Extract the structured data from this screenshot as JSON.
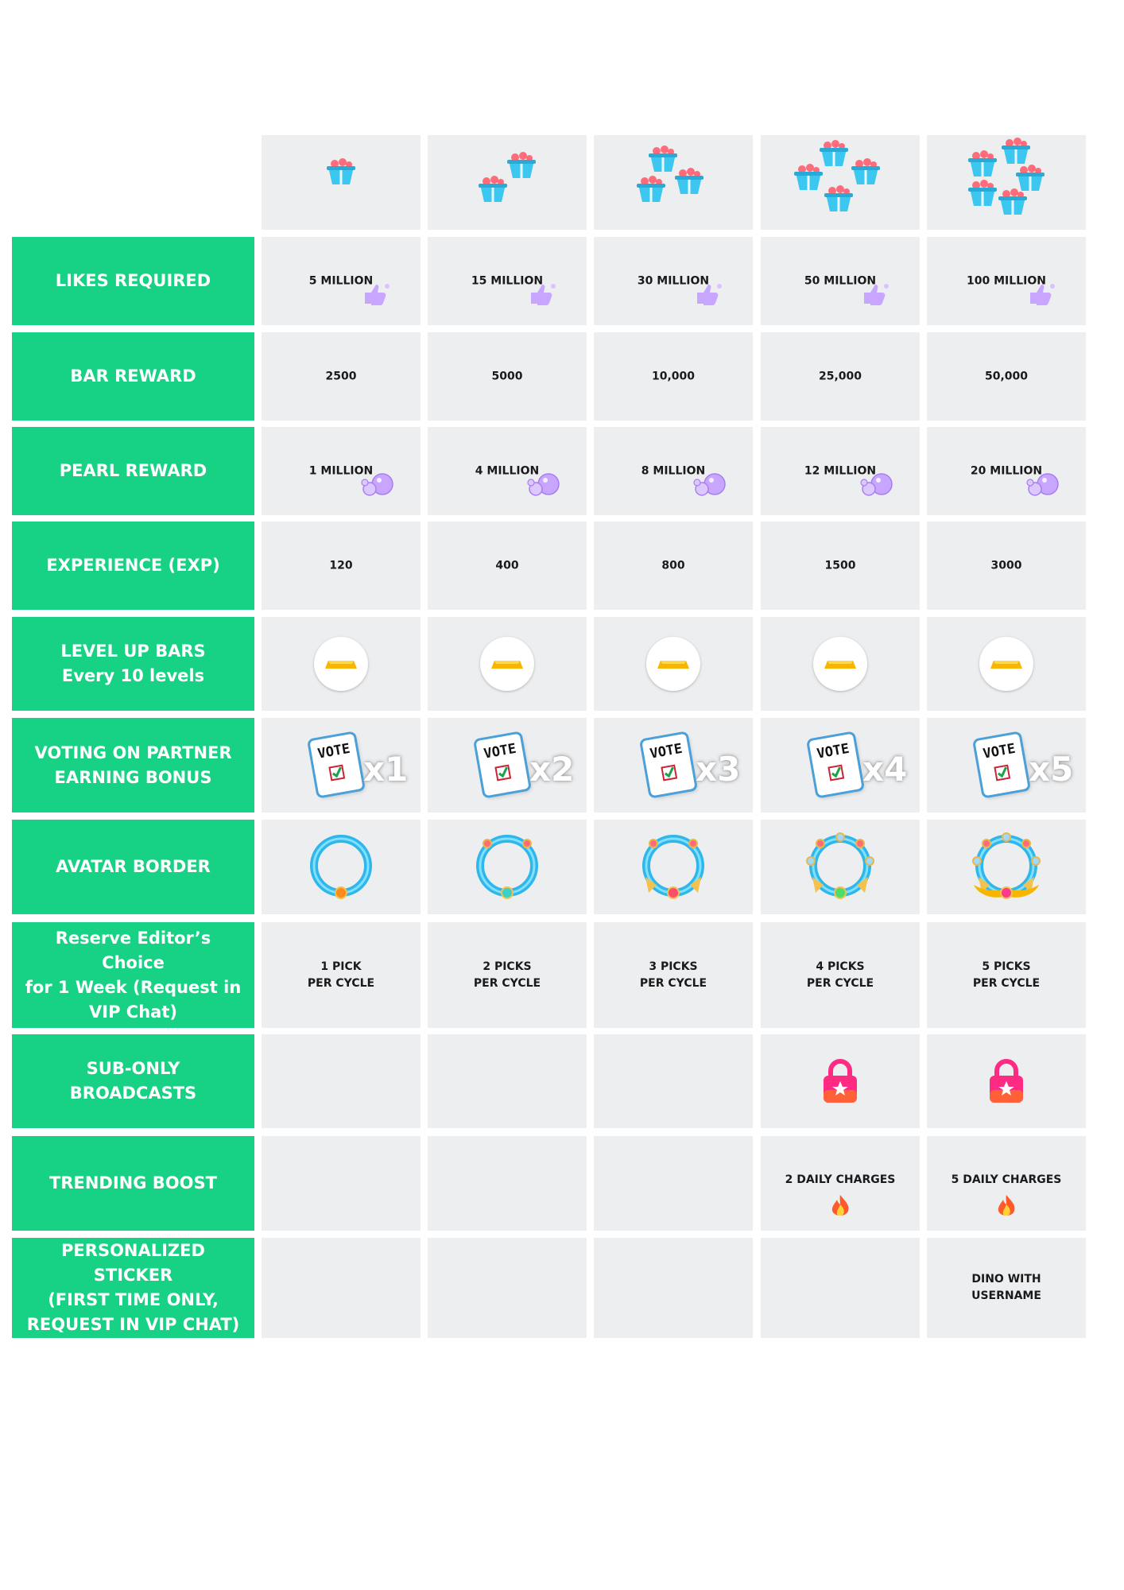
{
  "rows": [
    {
      "header": "LIKES REQUIRED",
      "cells": [
        "5 MILLION",
        "15 MILLION",
        "30 MILLION",
        "50 MILLION",
        "100 MILLION"
      ]
    },
    {
      "header": "BAR REWARD",
      "cells": [
        "2500",
        "5000",
        "10,000",
        "25,000",
        "50,000"
      ]
    },
    {
      "header": "PEARL REWARD",
      "cells": [
        "1 MILLION",
        "4 MILLION",
        "8 MILLION",
        "12 MILLION",
        "20 MILLION"
      ]
    },
    {
      "header": "EXPERIENCE (EXP)",
      "cells": [
        "120",
        "400",
        "800",
        "1500",
        "3000"
      ]
    },
    {
      "header": "LEVEL UP BARS\nEvery 10 levels",
      "cells": []
    },
    {
      "header": "VOTING ON PARTNER\nEARNING BONUS",
      "cells": [
        "x1",
        "x2",
        "x3",
        "x4",
        "x5"
      ]
    },
    {
      "header": "AVATAR BORDER",
      "cells": []
    },
    {
      "header": "Reserve Editor’s Choice\nfor 1 Week (Request in\nVIP Chat)",
      "cells": [
        "1 PICK\nPER CYCLE",
        "2 PICKS\nPER CYCLE",
        "3 PICKS\nPER CYCLE",
        "4 PICKS\nPER CYCLE",
        "5 PICKS\nPER CYCLE"
      ]
    },
    {
      "header": "SUB-ONLY\nBROADCASTS",
      "cells": [
        "",
        "",
        "",
        "",
        ""
      ]
    },
    {
      "header": "TRENDING BOOST",
      "cells": [
        "",
        "",
        "",
        "2 DAILY CHARGES",
        "5 DAILY CHARGES"
      ]
    },
    {
      "header": "PERSONALIZED STICKER\n(FIRST TIME ONLY,\nREQUEST IN VIP CHAT)",
      "cells": [
        "",
        "",
        "",
        "",
        "DINO WITH\nUSERNAME"
      ]
    }
  ],
  "vote_label": "VOTE",
  "tiers": [
    {
      "gift_icons": 1,
      "avatar_border": "ring-tier-1",
      "sub_only": false,
      "trending_icon": false
    },
    {
      "gift_icons": 2,
      "avatar_border": "ring-tier-2",
      "sub_only": false,
      "trending_icon": false
    },
    {
      "gift_icons": 3,
      "avatar_border": "ring-tier-3",
      "sub_only": false,
      "trending_icon": false
    },
    {
      "gift_icons": 4,
      "avatar_border": "ring-tier-4",
      "sub_only": true,
      "trending_icon": true
    },
    {
      "gift_icons": 5,
      "avatar_border": "ring-tier-5",
      "sub_only": true,
      "trending_icon": true
    }
  ],
  "colors": {
    "header_bg": "#17d184",
    "cell_bg": "#edeef0",
    "gift_blue": "#3bc7f0",
    "pearl": "#c8a6ff",
    "gold": "#f7b500",
    "lock_pink": "#ff2a82",
    "flame": "#ff5a2a"
  },
  "icons": {
    "likes": "thumbs-up-icon",
    "pearl": "pearl-icon",
    "level_up": "gold-bar-icon",
    "vote": "vote-ballot-icon",
    "sub_only": "lock-star-icon",
    "trending": "flame-icon",
    "tier": "gift-box-icon"
  }
}
